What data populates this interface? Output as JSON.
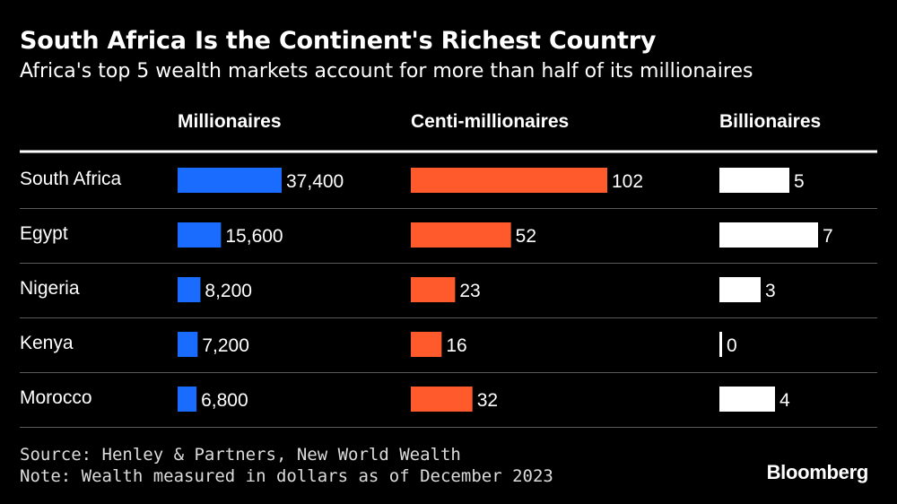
{
  "chart_data": {
    "type": "bar",
    "title": "South Africa Is the Continent's Richest Country",
    "subtitle": "Africa's top 5 wealth markets account for more than half of its millionaires",
    "categories": [
      "South Africa",
      "Egypt",
      "Nigeria",
      "Kenya",
      "Morocco"
    ],
    "series": [
      {
        "name": "Millionaires",
        "values": [
          37400,
          15600,
          8200,
          7200,
          6800
        ],
        "labels": [
          "37,400",
          "15,600",
          "8,200",
          "7,200",
          "6,800"
        ],
        "color": "#1a6cff"
      },
      {
        "name": "Centi-millionaires",
        "values": [
          102,
          52,
          23,
          16,
          32
        ],
        "labels": [
          "102",
          "52",
          "23",
          "16",
          "32"
        ],
        "color": "#ff5a2b"
      },
      {
        "name": "Billionaires",
        "values": [
          5,
          7,
          3,
          0,
          4
        ],
        "labels": [
          "5",
          "7",
          "3",
          "0",
          "4"
        ],
        "color": "#ffffff"
      }
    ],
    "source": "Source: Henley & Partners, New World Wealth",
    "note": "Note: Wealth measured in dollars as of December 2023"
  },
  "brand": "Bloomberg"
}
